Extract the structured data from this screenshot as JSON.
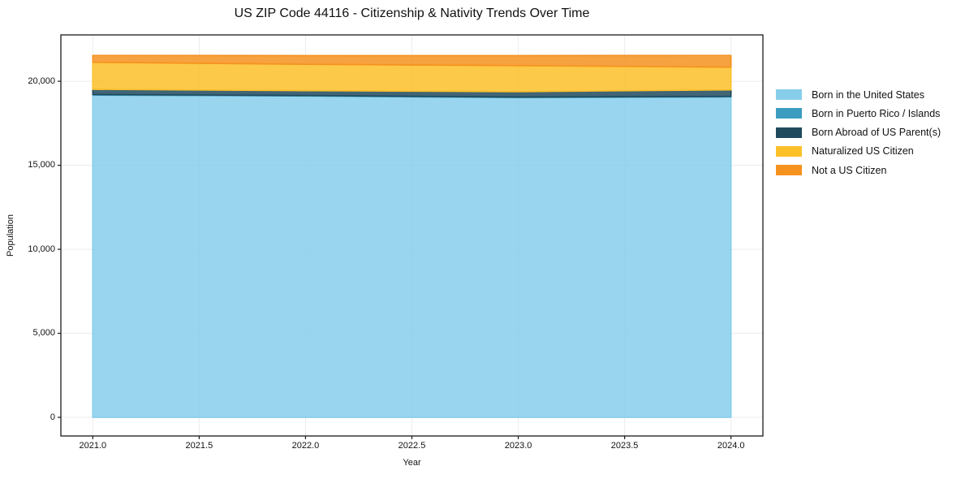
{
  "figure": {
    "title": "US ZIP Code 44116 - Citizenship & Nativity Trends Over Time"
  },
  "axes": {
    "xlabel": "Year",
    "ylabel": "Population",
    "xtick_labels": [
      "2021.0",
      "2021.5",
      "2022.0",
      "2022.5",
      "2023.0",
      "2023.5",
      "2024.0"
    ],
    "ytick_labels": [
      "0",
      "5,000",
      "10,000",
      "15,000",
      "20,000"
    ]
  },
  "legend": {
    "items": [
      {
        "label": "Born in the United States",
        "color": "#87CEEB"
      },
      {
        "label": "Born in Puerto Rico / Islands",
        "color": "#3C9DC0"
      },
      {
        "label": "Born Abroad of US Parent(s)",
        "color": "#1F4A5E"
      },
      {
        "label": "Naturalized US Citizen",
        "color": "#FDC029"
      },
      {
        "label": "Not a US Citizen",
        "color": "#F6921E"
      }
    ]
  },
  "chart_data": {
    "type": "area",
    "stacked": true,
    "title": "US ZIP Code 44116 - Citizenship & Nativity Trends Over Time",
    "xlabel": "Year",
    "ylabel": "Population",
    "x": [
      2021,
      2022,
      2023,
      2024
    ],
    "series": [
      {
        "name": "Born in the United States",
        "color": "#87CEEB",
        "values": [
          19180,
          19120,
          19030,
          19070
        ]
      },
      {
        "name": "Born in Puerto Rico / Islands",
        "color": "#3C9DC0",
        "values": [
          30,
          30,
          30,
          30
        ]
      },
      {
        "name": "Born Abroad of US Parent(s)",
        "color": "#1F4A5E",
        "values": [
          310,
          290,
          320,
          390
        ]
      },
      {
        "name": "Naturalized US Citizen",
        "color": "#FDC029",
        "values": [
          1610,
          1570,
          1550,
          1350
        ]
      },
      {
        "name": "Not a US Citizen",
        "color": "#F6921E",
        "values": [
          410,
          520,
          600,
          700
        ]
      }
    ],
    "totals": [
      21540,
      21530,
      21530,
      21540
    ],
    "xticks": [
      2021.0,
      2021.5,
      2022.0,
      2022.5,
      2023.0,
      2023.5,
      2024.0
    ],
    "yticks": [
      0,
      5000,
      10000,
      15000,
      20000
    ],
    "xlim": [
      2020.85,
      2024.15
    ],
    "ylim": [
      -1110,
      22760
    ],
    "grid": true,
    "grid_color": "#ececec",
    "spine_color": "#1a1a1a",
    "fill_opacity": 0.85,
    "legend_position": "right"
  }
}
